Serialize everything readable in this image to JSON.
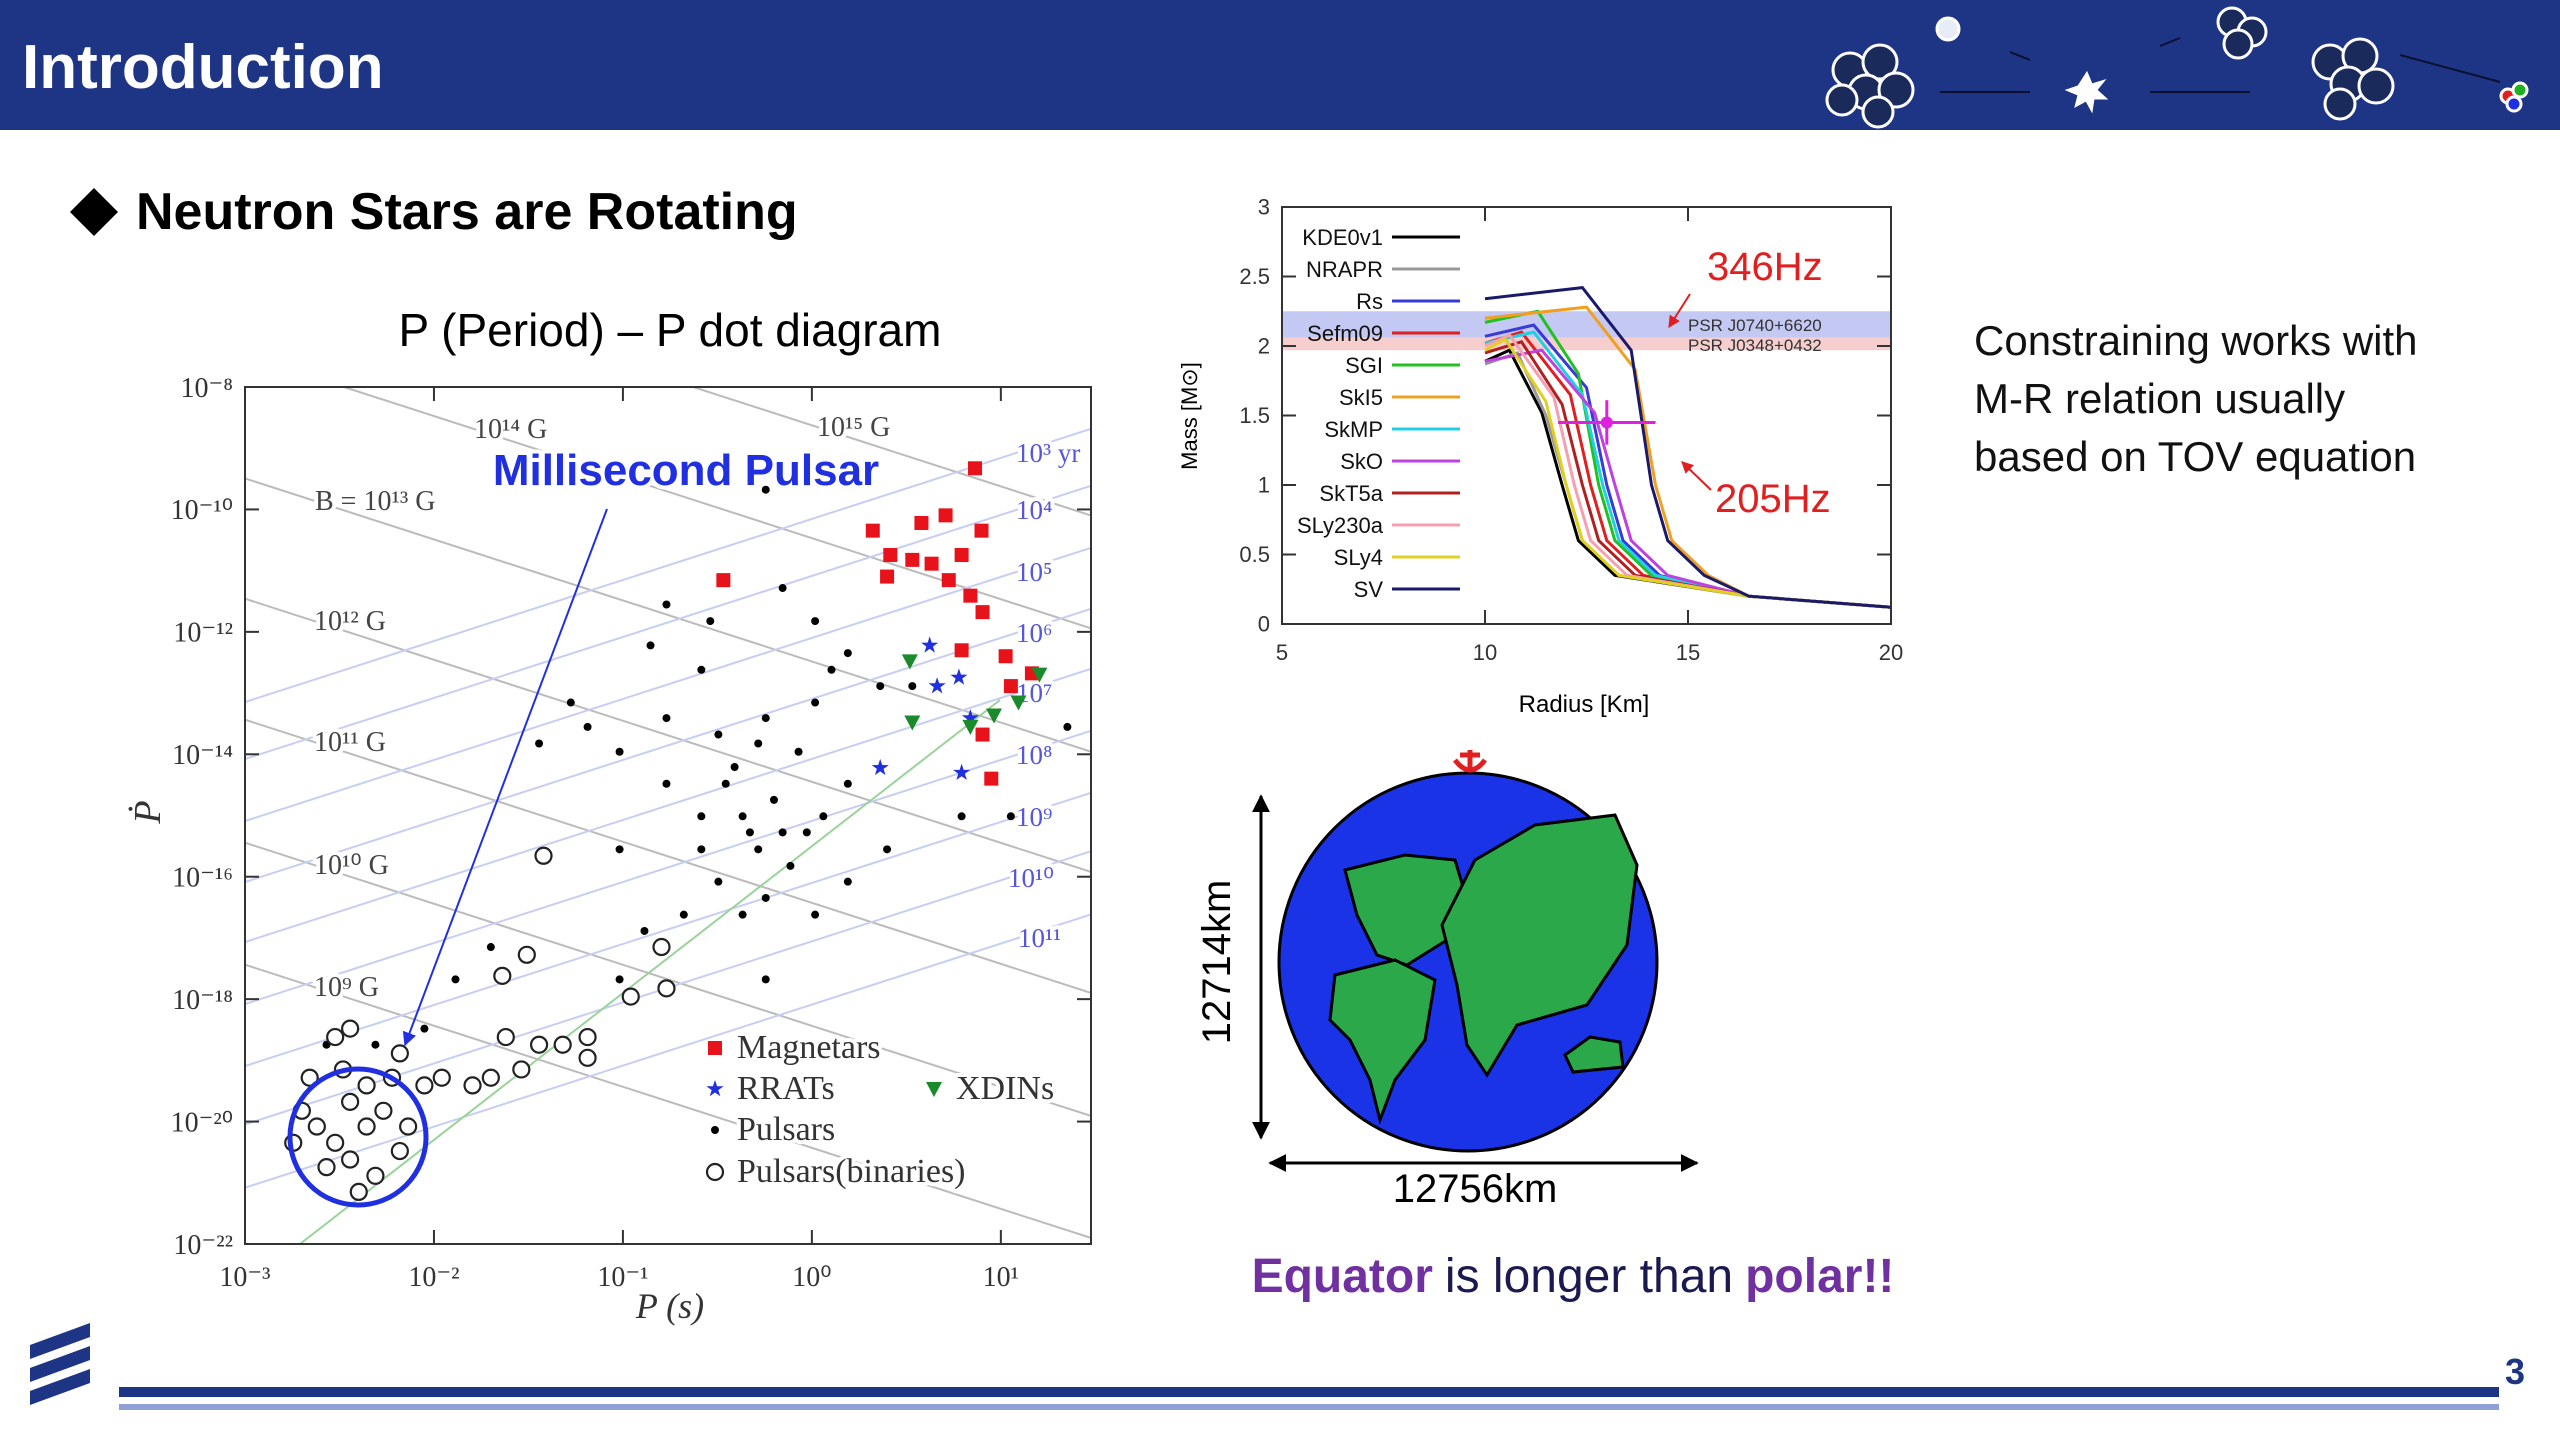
{
  "header": {
    "title": "Introduction"
  },
  "bullet": "Neutron Stars are Rotating",
  "page_number": "3",
  "side_text": [
    "Constraining works with",
    "M-R relation usually",
    "based on TOV equation"
  ],
  "earth": {
    "polar_diameter": "12714km",
    "equatorial_diameter": "12756km"
  },
  "caption": {
    "parts": [
      "Equator",
      "is longer than",
      "polar!!"
    ]
  },
  "chart_data": [
    {
      "type": "scatter",
      "title": "P (Period) – P dot diagram",
      "x_label": "P (s)",
      "y_label": "Ṗ",
      "xscale": "log",
      "yscale": "log",
      "xlim": [
        0.001,
        30
      ],
      "ylim": [
        1e-22,
        1e-08
      ],
      "xticks": [
        {
          "value": 0.001,
          "label": "10⁻³"
        },
        {
          "value": 0.01,
          "label": "10⁻²"
        },
        {
          "value": 0.1,
          "label": "10⁻¹"
        },
        {
          "value": 1,
          "label": "10⁰"
        },
        {
          "value": 10,
          "label": "10¹"
        }
      ],
      "yticks": [
        {
          "value": 1e-22,
          "label": "10⁻²²"
        },
        {
          "value": 1e-20,
          "label": "10⁻²⁰"
        },
        {
          "value": 1e-18,
          "label": "10⁻¹⁸"
        },
        {
          "value": 1e-16,
          "label": "10⁻¹⁶"
        },
        {
          "value": 1e-14,
          "label": "10⁻¹⁴"
        },
        {
          "value": 1e-12,
          "label": "10⁻¹²"
        },
        {
          "value": 1e-10,
          "label": "10⁻¹⁰"
        },
        {
          "value": 1e-08,
          "label": "10⁻⁸"
        }
      ],
      "annotations": [
        "Millisecond Pulsar"
      ],
      "field_labels": [
        "B = 10¹³ G",
        "10¹⁴ G",
        "10¹⁵ G",
        "10¹² G",
        "10¹¹ G",
        "10¹⁰ G",
        "10⁹ G"
      ],
      "age_labels": [
        "10³ yr",
        "10⁴",
        "10⁵",
        "10⁶",
        "10⁷",
        "10⁸",
        "10⁹",
        "10¹⁰",
        "10¹¹"
      ],
      "series": [
        {
          "name": "Magnetars",
          "color": "#e8121a",
          "marker": "square",
          "x": [
            0.34,
            2.1,
            2.6,
            2.5,
            3.8,
            5.1,
            3.4,
            4.3,
            6.2,
            7.9,
            7.3,
            5.3,
            6.9,
            8.0,
            6.2,
            10.6,
            14.6,
            11.3,
            8.0,
            8.9
          ],
          "values": [
            7e-12,
            4.5e-11,
            1.8e-11,
            8e-12,
            6e-11,
            8e-11,
            1.5e-11,
            1.3e-11,
            1.8e-11,
            4.5e-11,
            4.7e-10,
            7e-12,
            3.9e-12,
            2.1e-12,
            5e-13,
            4e-13,
            2.1e-13,
            1.3e-13,
            2.1e-14,
            4e-15
          ]
        },
        {
          "name": "RRATs",
          "color": "#2030e0",
          "marker": "star",
          "x": [
            4.2,
            6.0,
            4.6,
            6.9,
            2.3,
            6.2
          ],
          "values": [
            6e-13,
            1.8e-13,
            1.3e-13,
            3.9e-14,
            6e-15,
            5e-15
          ]
        },
        {
          "name": "XDINs",
          "color": "#1a8a2a",
          "marker": "triangle-down",
          "x": [
            3.3,
            16,
            12.4,
            6.9,
            9.2,
            3.4
          ],
          "values": [
            3.3e-13,
            2e-13,
            7e-14,
            2.8e-14,
            4.3e-14,
            3.3e-14
          ]
        },
        {
          "name": "Pulsars",
          "color": "#000000",
          "marker": "dot",
          "x": [
            0.053,
            0.065,
            0.096,
            0.14,
            0.26,
            0.29,
            0.7,
            1.27,
            1.55,
            2.3,
            3.4,
            6.2,
            2.5,
            0.036,
            0.0027,
            0.0049,
            0.0089,
            0.013,
            0.02,
            0.13,
            0.21,
            0.096,
            1.04,
            1.55,
            0.57,
            0.43,
            0.17,
            0.26,
            0.32,
            0.57,
            0.85,
            1.15,
            1.55,
            0.77,
            0.47,
            0.35,
            0.63,
            0.26,
            1.04,
            0.17,
            0.57,
            0.32,
            1.04,
            0.096,
            0.57,
            0.17,
            11.3,
            22.5,
            0.39,
            0.52,
            0.94,
            0.43,
            0.7,
            0.52
          ],
          "values": [
            7e-14,
            2.8e-14,
            1.1e-14,
            6e-13,
            2.4e-13,
            1.5e-12,
            5.2e-12,
            2.4e-13,
            4.5e-13,
            1.3e-13,
            1.3e-13,
            9.7e-16,
            2.8e-16,
            1.5e-14,
            1.8e-19,
            1.8e-19,
            3.3e-19,
            2.1e-18,
            7.1e-18,
            1.3e-17,
            2.4e-17,
            2.8e-16,
            1.5e-12,
            8.3e-17,
            2.1e-18,
            2.4e-17,
            3.3e-15,
            2.8e-16,
            2.1e-14,
            3.9e-14,
            1.1e-14,
            9.7e-16,
            3.3e-15,
            1.5e-16,
            5.3e-16,
            3.3e-15,
            1.8e-15,
            9.7e-16,
            7e-14,
            3.9e-14,
            4.5e-17,
            8.3e-17,
            2.4e-17,
            2.1e-18,
            2.1e-10,
            2.8e-12,
            9.7e-16,
            2.8e-14,
            6.2e-15,
            2.8e-16,
            5.3e-16,
            9.7e-16,
            5.3e-16,
            1.5e-14
          ]
        },
        {
          "name": "Pulsars(binaries)",
          "color": "#222222",
          "marker": "ring",
          "x": [
            0.002,
            0.0024,
            0.003,
            0.0036,
            0.0044,
            0.0054,
            0.0027,
            0.0036,
            0.0049,
            0.0066,
            0.0022,
            0.0033,
            0.0044,
            0.006,
            0.003,
            0.0036,
            0.0066,
            0.0089,
            0.011,
            0.016,
            0.02,
            0.029,
            0.024,
            0.036,
            0.048,
            0.065,
            0.11,
            0.16,
            0.17,
            0.038,
            0.023,
            0.031,
            0.065,
            0.0073,
            0.0018,
            0.004
          ],
          "values": [
            1.5e-20,
            8.3e-21,
            4.5e-21,
            2.1e-20,
            8.3e-21,
            1.5e-20,
            1.8e-21,
            2.4e-21,
            1.3e-21,
            3.3e-21,
            5.2e-20,
            7.1e-20,
            3.9e-20,
            5.2e-20,
            2.4e-19,
            3.3e-19,
            1.3e-19,
            3.9e-20,
            5.2e-20,
            3.9e-20,
            5.2e-20,
            7.1e-20,
            2.4e-19,
            1.8e-19,
            1.8e-19,
            2.4e-19,
            1.1e-18,
            7.1e-18,
            1.5e-18,
            2.2e-16,
            2.4e-18,
            5.3e-18,
            1.1e-19,
            8.3e-21,
            4.5e-21,
            7.1e-22
          ]
        }
      ]
    },
    {
      "type": "line",
      "x_label": "Radius [Km]",
      "y_label": "Mass [M⊙]",
      "xlim": [
        5,
        20
      ],
      "ylim": [
        0,
        3
      ],
      "xticks": [
        5,
        10,
        15,
        20
      ],
      "yticks": [
        0,
        0.5,
        1,
        1.5,
        2,
        2.5,
        3
      ],
      "legend": "upper left",
      "bands": [
        {
          "name": "PSR J0740+6620",
          "range": [
            2.06,
            2.25
          ],
          "color": "#b8bff0"
        },
        {
          "name": "PSR J0348+0432",
          "range": [
            1.97,
            2.06
          ],
          "color": "#f6c6c6"
        }
      ],
      "measurement": {
        "x": 13.0,
        "value": 1.45,
        "x_range": [
          11.8,
          14.2
        ],
        "range": [
          1.29,
          1.61
        ],
        "color": "#e020e0"
      },
      "annotations": [
        "346Hz",
        "205Hz"
      ],
      "series": [
        {
          "name": "KDE0v1",
          "color": "#000000",
          "x": [
            10,
            10.6,
            11.4,
            11.9,
            12.3,
            13.2,
            16.5,
            20
          ],
          "values": [
            1.89,
            1.97,
            1.52,
            1.0,
            0.6,
            0.35,
            0.2,
            0.12
          ]
        },
        {
          "name": "NRAPR",
          "color": "#999999",
          "x": [
            10,
            10.8,
            11.5,
            12.0,
            12.4,
            13.3,
            16.5,
            20
          ],
          "values": [
            1.87,
            1.95,
            1.5,
            1.0,
            0.6,
            0.35,
            0.2,
            0.12
          ]
        },
        {
          "name": "Rs",
          "color": "#3a3ad8",
          "x": [
            10,
            11.2,
            12.5,
            13.0,
            13.4,
            14.3,
            16.5,
            20
          ],
          "values": [
            2.07,
            2.15,
            1.7,
            1.0,
            0.6,
            0.35,
            0.2,
            0.12
          ]
        },
        {
          "name": "Sefm09",
          "color": "#e02020",
          "x": [
            10,
            10.9,
            12.1,
            12.6,
            13.0,
            13.9,
            16.5,
            20
          ],
          "values": [
            2.02,
            2.1,
            1.65,
            1.0,
            0.6,
            0.35,
            0.2,
            0.12
          ]
        },
        {
          "name": "SGI",
          "color": "#22c022",
          "x": [
            10,
            11.3,
            12.3,
            12.8,
            13.2,
            14.1,
            16.5,
            20
          ],
          "values": [
            2.17,
            2.25,
            1.8,
            1.0,
            0.6,
            0.35,
            0.2,
            0.12
          ]
        },
        {
          "name": "SkI5",
          "color": "#f0a020",
          "x": [
            10,
            12.5,
            13.7,
            14.2,
            14.6,
            15.5,
            16.5,
            20
          ],
          "values": [
            2.2,
            2.28,
            1.83,
            1.0,
            0.6,
            0.35,
            0.2,
            0.12
          ]
        },
        {
          "name": "SkMP",
          "color": "#20d0e0",
          "x": [
            10,
            11.2,
            12.4,
            12.9,
            13.3,
            14.2,
            16.5,
            20
          ],
          "values": [
            2.02,
            2.1,
            1.65,
            1.0,
            0.6,
            0.35,
            0.2,
            0.12
          ]
        },
        {
          "name": "SkO",
          "color": "#c040e0",
          "x": [
            10,
            11.4,
            12.7,
            13.2,
            13.6,
            14.5,
            16.5,
            20
          ],
          "values": [
            1.89,
            1.97,
            1.52,
            1.0,
            0.6,
            0.35,
            0.2,
            0.12
          ]
        },
        {
          "name": "SkT5a",
          "color": "#b02020",
          "x": [
            10,
            10.9,
            11.9,
            12.4,
            12.8,
            13.7,
            16.5,
            20
          ],
          "values": [
            1.95,
            2.03,
            1.58,
            1.0,
            0.6,
            0.35,
            0.2,
            0.12
          ]
        },
        {
          "name": "SLy230a",
          "color": "#f4a0b0",
          "x": [
            10,
            10.6,
            11.7,
            12.2,
            12.6,
            13.5,
            16.5,
            20
          ],
          "values": [
            2.0,
            2.08,
            1.63,
            1.0,
            0.6,
            0.35,
            0.2,
            0.12
          ]
        },
        {
          "name": "SLy4",
          "color": "#e0d020",
          "x": [
            10,
            10.5,
            11.5,
            12.0,
            12.4,
            13.3,
            16.5,
            20
          ],
          "values": [
            1.97,
            2.05,
            1.6,
            1.0,
            0.6,
            0.35,
            0.2,
            0.12
          ]
        },
        {
          "name": "SV",
          "color": "#1a1a6a",
          "x": [
            10,
            12.4,
            13.6,
            14.1,
            14.5,
            15.4,
            16.5,
            20
          ],
          "values": [
            2.34,
            2.42,
            1.97,
            1.0,
            0.6,
            0.35,
            0.2,
            0.12
          ]
        }
      ]
    }
  ]
}
